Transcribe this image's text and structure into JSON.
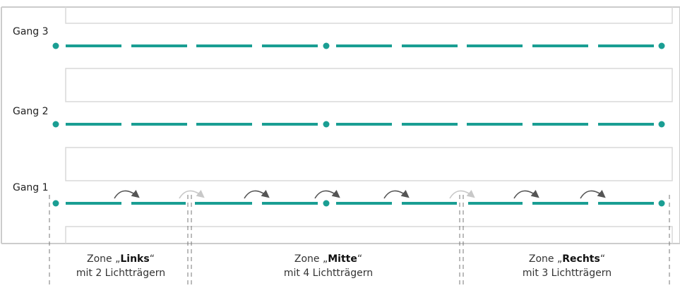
{
  "aisles": [
    {
      "label": "Gang 3"
    },
    {
      "label": "Gang 2"
    },
    {
      "label": "Gang 1"
    }
  ],
  "zones": [
    {
      "prefix": "Zone „",
      "name": "Links",
      "suffix": "“",
      "line2": "mit 2 Lichtträgern"
    },
    {
      "prefix": "Zone „",
      "name": "Mitte",
      "suffix": "“",
      "line2": "mit 4 Lichtträgern"
    },
    {
      "prefix": "Zone „",
      "name": "Rechts",
      "suffix": "“",
      "line2": "mit 3 Lichtträgern"
    }
  ],
  "colors": {
    "line": "#1a9e93",
    "shelf_border": "#d9d9d9",
    "frame": "#cccccc",
    "arrow_dark": "#555555",
    "arrow_light": "#c8c8c8",
    "divider": "#777777"
  }
}
